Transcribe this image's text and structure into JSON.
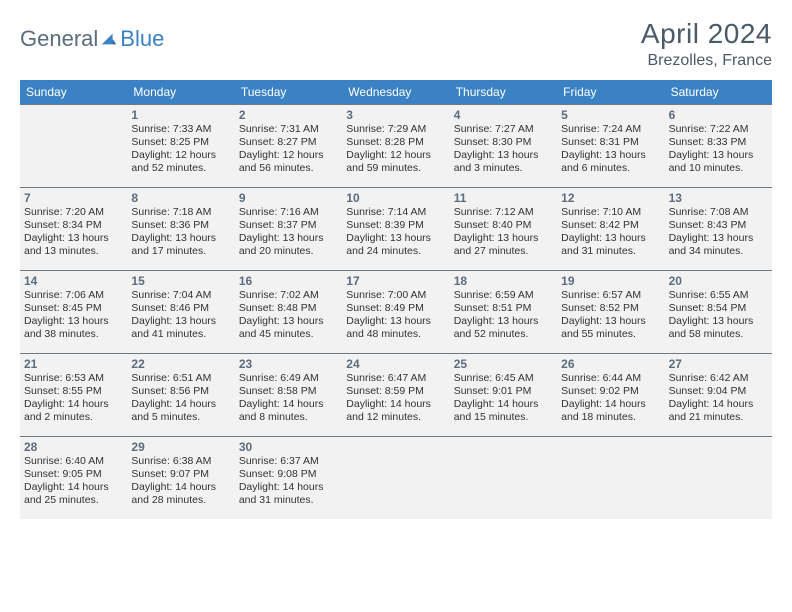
{
  "logo": {
    "text1": "General",
    "text2": "Blue"
  },
  "title": "April 2024",
  "location": "Brezolles, France",
  "colors": {
    "header_bg": "#3b82c4",
    "header_fg": "#ffffff",
    "text": "#333333",
    "muted": "#5a6c7d",
    "cell_bg": "#f2f2f2",
    "rule": "#6a7a88"
  },
  "daysOfWeek": [
    "Sunday",
    "Monday",
    "Tuesday",
    "Wednesday",
    "Thursday",
    "Friday",
    "Saturday"
  ],
  "weeks": [
    [
      null,
      {
        "n": "1",
        "sr": "7:33 AM",
        "ss": "8:25 PM",
        "dl": "12 hours and 52 minutes."
      },
      {
        "n": "2",
        "sr": "7:31 AM",
        "ss": "8:27 PM",
        "dl": "12 hours and 56 minutes."
      },
      {
        "n": "3",
        "sr": "7:29 AM",
        "ss": "8:28 PM",
        "dl": "12 hours and 59 minutes."
      },
      {
        "n": "4",
        "sr": "7:27 AM",
        "ss": "8:30 PM",
        "dl": "13 hours and 3 minutes."
      },
      {
        "n": "5",
        "sr": "7:24 AM",
        "ss": "8:31 PM",
        "dl": "13 hours and 6 minutes."
      },
      {
        "n": "6",
        "sr": "7:22 AM",
        "ss": "8:33 PM",
        "dl": "13 hours and 10 minutes."
      }
    ],
    [
      {
        "n": "7",
        "sr": "7:20 AM",
        "ss": "8:34 PM",
        "dl": "13 hours and 13 minutes."
      },
      {
        "n": "8",
        "sr": "7:18 AM",
        "ss": "8:36 PM",
        "dl": "13 hours and 17 minutes."
      },
      {
        "n": "9",
        "sr": "7:16 AM",
        "ss": "8:37 PM",
        "dl": "13 hours and 20 minutes."
      },
      {
        "n": "10",
        "sr": "7:14 AM",
        "ss": "8:39 PM",
        "dl": "13 hours and 24 minutes."
      },
      {
        "n": "11",
        "sr": "7:12 AM",
        "ss": "8:40 PM",
        "dl": "13 hours and 27 minutes."
      },
      {
        "n": "12",
        "sr": "7:10 AM",
        "ss": "8:42 PM",
        "dl": "13 hours and 31 minutes."
      },
      {
        "n": "13",
        "sr": "7:08 AM",
        "ss": "8:43 PM",
        "dl": "13 hours and 34 minutes."
      }
    ],
    [
      {
        "n": "14",
        "sr": "7:06 AM",
        "ss": "8:45 PM",
        "dl": "13 hours and 38 minutes."
      },
      {
        "n": "15",
        "sr": "7:04 AM",
        "ss": "8:46 PM",
        "dl": "13 hours and 41 minutes."
      },
      {
        "n": "16",
        "sr": "7:02 AM",
        "ss": "8:48 PM",
        "dl": "13 hours and 45 minutes."
      },
      {
        "n": "17",
        "sr": "7:00 AM",
        "ss": "8:49 PM",
        "dl": "13 hours and 48 minutes."
      },
      {
        "n": "18",
        "sr": "6:59 AM",
        "ss": "8:51 PM",
        "dl": "13 hours and 52 minutes."
      },
      {
        "n": "19",
        "sr": "6:57 AM",
        "ss": "8:52 PM",
        "dl": "13 hours and 55 minutes."
      },
      {
        "n": "20",
        "sr": "6:55 AM",
        "ss": "8:54 PM",
        "dl": "13 hours and 58 minutes."
      }
    ],
    [
      {
        "n": "21",
        "sr": "6:53 AM",
        "ss": "8:55 PM",
        "dl": "14 hours and 2 minutes."
      },
      {
        "n": "22",
        "sr": "6:51 AM",
        "ss": "8:56 PM",
        "dl": "14 hours and 5 minutes."
      },
      {
        "n": "23",
        "sr": "6:49 AM",
        "ss": "8:58 PM",
        "dl": "14 hours and 8 minutes."
      },
      {
        "n": "24",
        "sr": "6:47 AM",
        "ss": "8:59 PM",
        "dl": "14 hours and 12 minutes."
      },
      {
        "n": "25",
        "sr": "6:45 AM",
        "ss": "9:01 PM",
        "dl": "14 hours and 15 minutes."
      },
      {
        "n": "26",
        "sr": "6:44 AM",
        "ss": "9:02 PM",
        "dl": "14 hours and 18 minutes."
      },
      {
        "n": "27",
        "sr": "6:42 AM",
        "ss": "9:04 PM",
        "dl": "14 hours and 21 minutes."
      }
    ],
    [
      {
        "n": "28",
        "sr": "6:40 AM",
        "ss": "9:05 PM",
        "dl": "14 hours and 25 minutes."
      },
      {
        "n": "29",
        "sr": "6:38 AM",
        "ss": "9:07 PM",
        "dl": "14 hours and 28 minutes."
      },
      {
        "n": "30",
        "sr": "6:37 AM",
        "ss": "9:08 PM",
        "dl": "14 hours and 31 minutes."
      },
      null,
      null,
      null,
      null
    ]
  ]
}
